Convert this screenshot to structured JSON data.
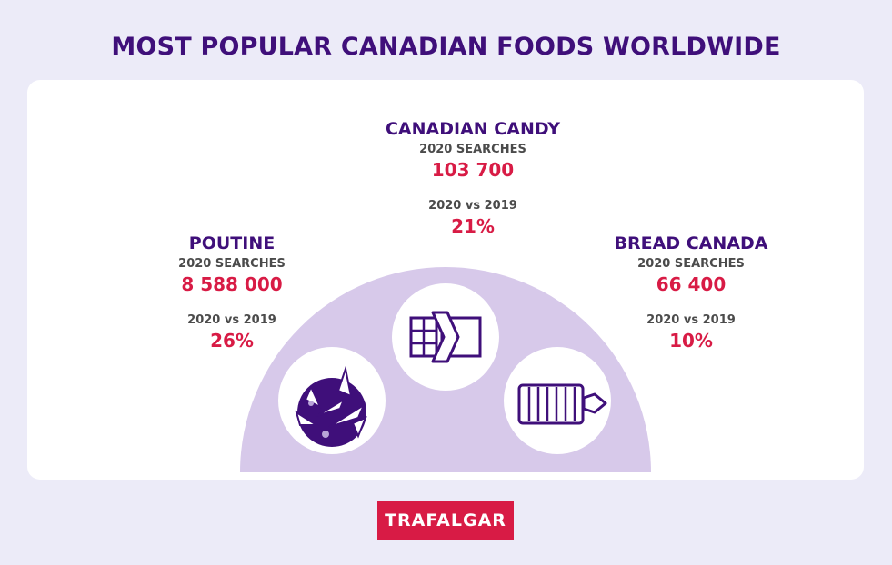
{
  "title": "MOST POPULAR CANADIAN FOODS WORLDWIDE",
  "foods": {
    "poutine": {
      "name": "POUTINE",
      "searches_label": "2020 SEARCHES",
      "searches": "8 588 000",
      "compare_label": "2020 vs 2019",
      "change": "26%"
    },
    "candy": {
      "name": "CANADIAN CANDY",
      "searches_label": "2020 SEARCHES",
      "searches": "103 700",
      "compare_label": "2020 vs 2019",
      "change": "21%"
    },
    "bread": {
      "name": "BREAD CANADA",
      "searches_label": "2020 SEARCHES",
      "searches": "66 400",
      "compare_label": "2020 vs 2019",
      "change": "10%"
    }
  },
  "icons": {
    "poutine": "poutine-icon",
    "candy": "candy-bar-icon",
    "bread": "bread-loaf-icon"
  },
  "brand": {
    "logo_text": "TRAFALGAR"
  },
  "colors": {
    "purple": "#3f0f7a",
    "red": "#d81b45",
    "lavender": "#d7c9ea",
    "background": "#ecebf8"
  }
}
